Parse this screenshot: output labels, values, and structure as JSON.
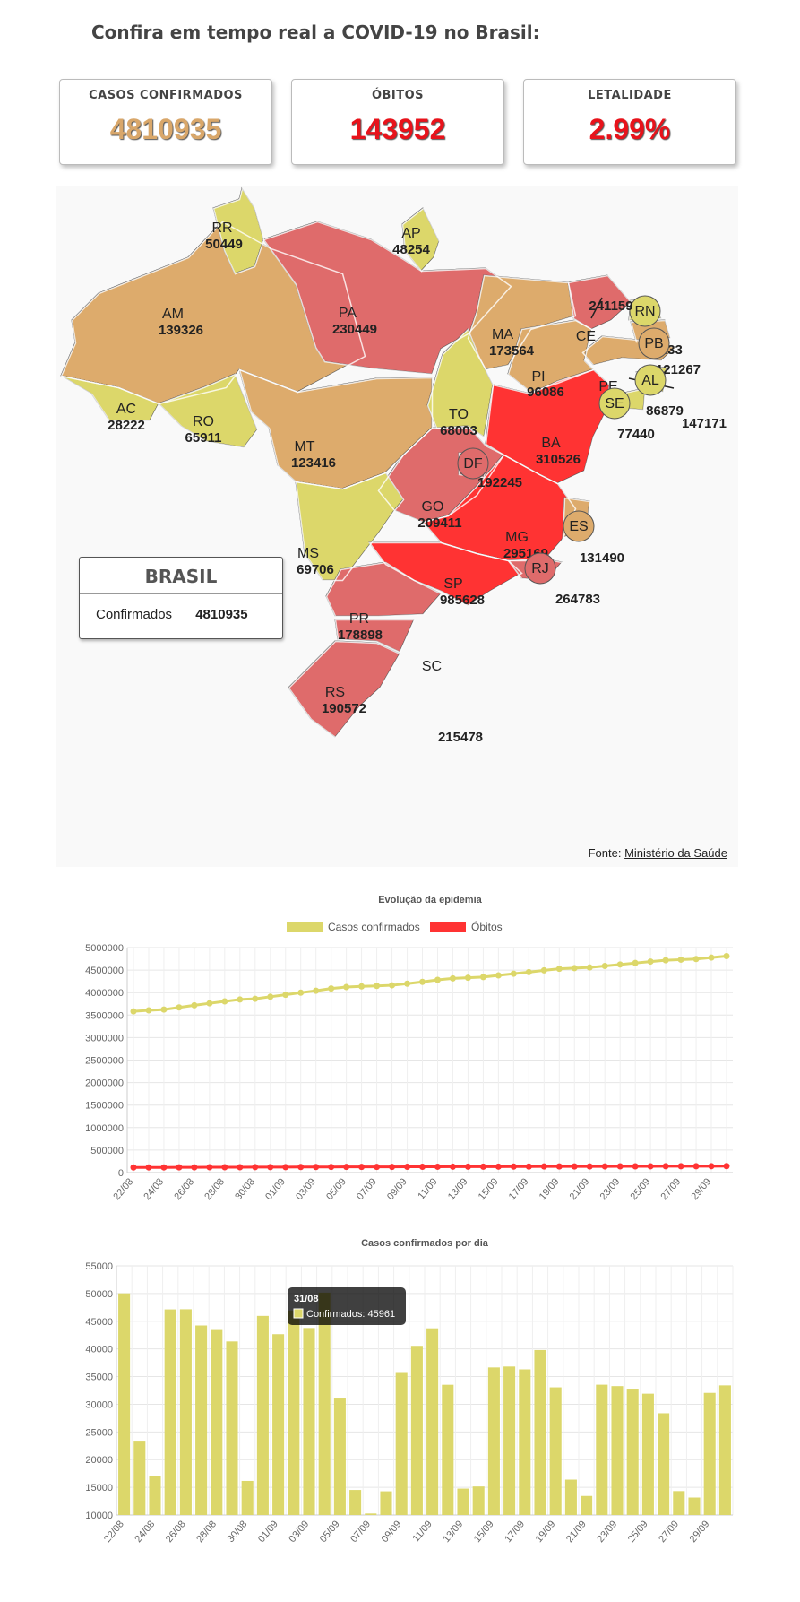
{
  "page": {
    "heading": "Confira em tempo real a COVID-19 no Brasil:"
  },
  "stats": [
    {
      "label": "CASOS CONFIRMADOS",
      "value": "4810935",
      "color": "#d9a76a"
    },
    {
      "label": "ÓBITOS",
      "value": "143952",
      "color": "#e8131b"
    },
    {
      "label": "LETALIDADE",
      "value": "2.99%",
      "color": "#e8131b"
    }
  ],
  "map": {
    "colors": {
      "yellow": "#dcd76a",
      "orange": "#ddab6c",
      "pink": "#df6b6b",
      "red": "#ff3333"
    },
    "states": [
      {
        "code": "RR",
        "value": "50449",
        "color": "yellow"
      },
      {
        "code": "AP",
        "value": "48254",
        "color": "yellow"
      },
      {
        "code": "AM",
        "value": "139326",
        "color": "orange"
      },
      {
        "code": "PA",
        "value": "230449",
        "color": "pink"
      },
      {
        "code": "MA",
        "value": "173564",
        "color": "orange"
      },
      {
        "code": "CE",
        "value": "241159",
        "color": "pink"
      },
      {
        "code": "RN",
        "value": "69433",
        "color": "yellow"
      },
      {
        "code": "PB",
        "value": "121267",
        "color": "orange"
      },
      {
        "code": "PE",
        "value": "147171",
        "color": "orange"
      },
      {
        "code": "PI",
        "value": "96086",
        "color": "orange"
      },
      {
        "code": "AL",
        "value": "86879",
        "color": "yellow"
      },
      {
        "code": "SE",
        "value": "77440",
        "color": "yellow"
      },
      {
        "code": "AC",
        "value": "28222",
        "color": "yellow"
      },
      {
        "code": "RO",
        "value": "65911",
        "color": "yellow"
      },
      {
        "code": "TO",
        "value": "68003",
        "color": "yellow"
      },
      {
        "code": "MT",
        "value": "123416",
        "color": "orange"
      },
      {
        "code": "BA",
        "value": "310526",
        "color": "red"
      },
      {
        "code": "DF",
        "value": "192245",
        "color": "pink"
      },
      {
        "code": "GO",
        "value": "209411",
        "color": "pink"
      },
      {
        "code": "MG",
        "value": "295169",
        "color": "red"
      },
      {
        "code": "MS",
        "value": "69706",
        "color": "yellow"
      },
      {
        "code": "ES",
        "value": "131490",
        "color": "orange"
      },
      {
        "code": "SP",
        "value": "985628",
        "color": "red"
      },
      {
        "code": "RJ",
        "value": "264783",
        "color": "pink"
      },
      {
        "code": "PR",
        "value": "178898",
        "color": "pink"
      },
      {
        "code": "SC",
        "value": "215478",
        "color": "pink"
      },
      {
        "code": "RS",
        "value": "190572",
        "color": "pink"
      }
    ],
    "summary": {
      "title": "BRASIL",
      "label": "Confirmados",
      "value": "4810935"
    },
    "source": {
      "prefix": "Fonte:",
      "name": "Ministério da Saúde"
    }
  },
  "chart_data": [
    {
      "type": "line",
      "title": "Evolução da epidemia",
      "x": [
        "22/08",
        "23/08",
        "24/08",
        "25/08",
        "26/08",
        "27/08",
        "28/08",
        "29/08",
        "30/08",
        "31/08",
        "01/09",
        "02/09",
        "03/09",
        "04/09",
        "05/09",
        "06/09",
        "07/09",
        "08/09",
        "09/09",
        "10/09",
        "11/09",
        "12/09",
        "13/09",
        "14/09",
        "15/09",
        "16/09",
        "17/09",
        "18/09",
        "19/09",
        "20/09",
        "21/09",
        "22/09",
        "23/09",
        "24/09",
        "25/09",
        "26/09",
        "27/09",
        "28/09",
        "29/09",
        "30/09"
      ],
      "x_tick_labels": [
        "22/08",
        "24/08",
        "26/08",
        "28/08",
        "30/08",
        "01/09",
        "03/09",
        "05/09",
        "07/09",
        "09/09",
        "11/09",
        "13/09",
        "15/09",
        "17/09",
        "19/09",
        "21/09",
        "23/09",
        "25/09",
        "27/09",
        "29/09"
      ],
      "series": [
        {
          "name": "Casos confirmados",
          "color": "#dcd76a",
          "values": [
            3582362,
            3605783,
            3622861,
            3669995,
            3717156,
            3761391,
            3804803,
            3846153,
            3862311,
            3908272,
            3950931,
            3997865,
            4041638,
            4091801,
            4123000,
            4137521,
            4147794,
            4162073,
            4197889,
            4238446,
            4282164,
            4315687,
            4330455,
            4345610,
            4382263,
            4419083,
            4455386,
            4495183,
            4528240,
            4544629,
            4558068,
            4591604,
            4624885,
            4657702,
            4689613,
            4717991,
            4732309,
            4745464,
            4777522,
            4810935
          ]
        },
        {
          "name": "Óbitos",
          "color": "#ff3333",
          "values": [
            114250,
            115309,
            115451,
            116580,
            117665,
            118649,
            119504,
            120262,
            120828,
            121381,
            122596,
            123780,
            124614,
            125502,
            126203,
            126650,
            126960,
            127464,
            128539,
            129522,
            130396,
            131210,
            131625,
            132006,
            133119,
            134106,
            134935,
            135793,
            136532,
            136895,
            137272,
            138105,
            138977,
            139808,
            140537,
            141406,
            141741,
            142058,
            142921,
            143952
          ]
        }
      ],
      "ylim": [
        0,
        5000000
      ],
      "yticks": [
        0,
        500000,
        1000000,
        1500000,
        2000000,
        2500000,
        3000000,
        3500000,
        4000000,
        4500000,
        5000000
      ],
      "legend": "top"
    },
    {
      "type": "bar",
      "title": "Casos confirmados por dia",
      "categories": [
        "22/08",
        "23/08",
        "24/08",
        "25/08",
        "26/08",
        "27/08",
        "28/08",
        "29/08",
        "30/08",
        "31/08",
        "01/09",
        "02/09",
        "03/09",
        "04/09",
        "05/09",
        "06/09",
        "07/09",
        "08/09",
        "09/09",
        "10/09",
        "11/09",
        "12/09",
        "13/09",
        "14/09",
        "15/09",
        "16/09",
        "17/09",
        "18/09",
        "19/09",
        "20/09",
        "21/09",
        "22/09",
        "23/09",
        "24/09",
        "25/09",
        "26/09",
        "27/09",
        "28/09",
        "29/09",
        "30/09"
      ],
      "x_tick_labels": [
        "22/08",
        "24/08",
        "26/08",
        "28/08",
        "30/08",
        "01/09",
        "03/09",
        "05/09",
        "07/09",
        "09/09",
        "11/09",
        "13/09",
        "15/09",
        "17/09",
        "19/09",
        "21/09",
        "23/09",
        "25/09",
        "27/09",
        "29/09"
      ],
      "series": [
        {
          "name": "Confirmados",
          "color": "#dcd76a",
          "values": [
            50032,
            23421,
            17078,
            47134,
            47161,
            44235,
            43412,
            41350,
            16158,
            45961,
            42659,
            46934,
            43773,
            50163,
            31199,
            14521,
            10273,
            14279,
            35816,
            40557,
            43718,
            33523,
            14768,
            15155,
            36653,
            36820,
            36303,
            39797,
            33057,
            16389,
            13439,
            33536,
            33281,
            32817,
            31911,
            28378,
            14318,
            13155,
            32058,
            33413
          ]
        }
      ],
      "ylim": [
        10000,
        55000
      ],
      "yticks": [
        10000,
        15000,
        20000,
        25000,
        30000,
        35000,
        40000,
        45000,
        50000,
        55000
      ],
      "tooltip": {
        "title": "31/08",
        "label": "Confirmados: 45961"
      }
    }
  ]
}
